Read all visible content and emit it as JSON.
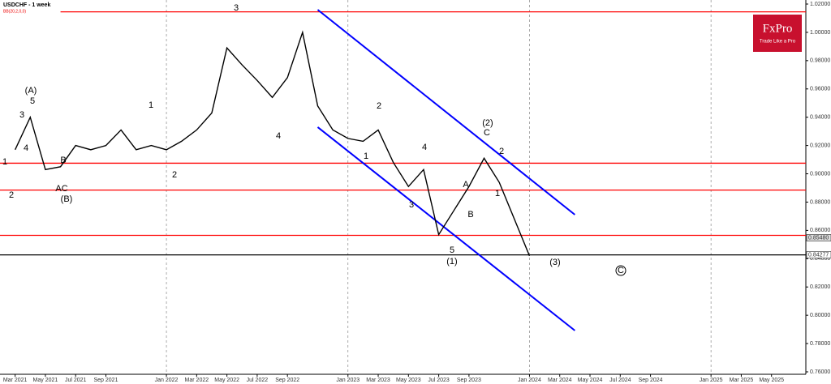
{
  "chart_data": {
    "type": "line",
    "title": "USDCHF - 1 week",
    "subtitle": "BB(20,2,0,0)",
    "logo": {
      "name": "FxPro",
      "tagline": "Trade Like a Pro"
    },
    "x": [
      "2021-03",
      "2021-04",
      "2021-05",
      "2021-06",
      "2021-07",
      "2021-08",
      "2021-09",
      "2021-10",
      "2021-11",
      "2021-12",
      "2022-01",
      "2022-02",
      "2022-03",
      "2022-04",
      "2022-05",
      "2022-06",
      "2022-07",
      "2022-08",
      "2022-09",
      "2022-10",
      "2022-11",
      "2022-12",
      "2023-01",
      "2023-02",
      "2023-03",
      "2023-04",
      "2023-05",
      "2023-06",
      "2023-07",
      "2023-08",
      "2023-09",
      "2023-10",
      "2023-11",
      "2023-12",
      "2024-01"
    ],
    "series": [
      {
        "name": "USDCHF",
        "color": "#000000",
        "values": [
          0.917,
          0.94,
          0.903,
          0.905,
          0.92,
          0.917,
          0.92,
          0.931,
          0.917,
          0.92,
          0.917,
          0.923,
          0.931,
          0.943,
          0.989,
          0.977,
          0.966,
          0.954,
          0.968,
          1.0,
          0.948,
          0.931,
          0.925,
          0.923,
          0.931,
          0.908,
          0.891,
          0.903,
          0.857,
          0.874,
          0.891,
          0.911,
          0.894,
          0.868,
          0.842
        ]
      }
    ],
    "xlim": [
      "2021-02",
      "2025-07"
    ],
    "xticks": [
      {
        "value": "2021-03",
        "label": "Mar 2021"
      },
      {
        "value": "2021-05",
        "label": "May 2021"
      },
      {
        "value": "2021-07",
        "label": "Jul 2021"
      },
      {
        "value": "2021-09",
        "label": "Sep 2021"
      },
      {
        "value": "2022-01",
        "label": "Jan 2022"
      },
      {
        "value": "2022-03",
        "label": "Mar 2022"
      },
      {
        "value": "2022-05",
        "label": "May 2022"
      },
      {
        "value": "2022-07",
        "label": "Jul 2022"
      },
      {
        "value": "2022-09",
        "label": "Sep 2022"
      },
      {
        "value": "2023-01",
        "label": "Jan 2023"
      },
      {
        "value": "2023-03",
        "label": "Mar 2023"
      },
      {
        "value": "2023-05",
        "label": "May 2023"
      },
      {
        "value": "2023-07",
        "label": "Jul 2023"
      },
      {
        "value": "2023-09",
        "label": "Sep 2023"
      },
      {
        "value": "2024-01",
        "label": "Jan 2024"
      },
      {
        "value": "2024-03",
        "label": "Mar 2024"
      },
      {
        "value": "2024-05",
        "label": "May 2024"
      },
      {
        "value": "2024-07",
        "label": "Jul 2024"
      },
      {
        "value": "2024-09",
        "label": "Sep 2024"
      },
      {
        "value": "2025-01",
        "label": "Jan 2025"
      },
      {
        "value": "2025-03",
        "label": "Mar 2025"
      },
      {
        "value": "2025-05",
        "label": "May 2025"
      }
    ],
    "ylim": [
      0.76,
      1.02
    ],
    "yticks": [
      {
        "value": 1.02,
        "label": "1.02000"
      },
      {
        "value": 1.0,
        "label": "1.00000"
      },
      {
        "value": 0.98,
        "label": "0.98000"
      },
      {
        "value": 0.96,
        "label": "0.96000"
      },
      {
        "value": 0.94,
        "label": "0.94000"
      },
      {
        "value": 0.92,
        "label": "0.92000"
      },
      {
        "value": 0.9,
        "label": "0.90000"
      },
      {
        "value": 0.88,
        "label": "0.88000"
      },
      {
        "value": 0.86,
        "label": "0.86000"
      },
      {
        "value": 0.84,
        "label": "0.84000"
      },
      {
        "value": 0.82,
        "label": "0.82000"
      },
      {
        "value": 0.8,
        "label": "0.80000"
      },
      {
        "value": 0.78,
        "label": "0.78000"
      },
      {
        "value": 0.76,
        "label": "0.76000"
      }
    ],
    "hlines": [
      {
        "value": 1.0145,
        "color": "#ff0000",
        "start": "2021-06"
      },
      {
        "value": 0.9075,
        "color": "#ff0000"
      },
      {
        "value": 0.8885,
        "color": "#ff0000"
      },
      {
        "value": 0.8565,
        "color": "#ff0000"
      },
      {
        "value": 0.8427,
        "color": "#000000"
      }
    ],
    "trendlines": [
      {
        "color": "#0000ff",
        "x": [
          "2022-11",
          "2024-04"
        ],
        "y": [
          1.016,
          0.8711
        ]
      },
      {
        "color": "#0000ff",
        "x": [
          "2022-11",
          "2024-04"
        ],
        "y": [
          0.933,
          0.7892
        ]
      }
    ],
    "price_labels": [
      {
        "value": 0.8548,
        "label": "0.85480"
      },
      {
        "value": 0.84277,
        "label": "0.84277"
      }
    ],
    "annotations": [
      "3",
      "(A)",
      "5",
      "3",
      "4",
      "B",
      "AC",
      "(B)",
      "1",
      "2",
      "1",
      "2",
      "4",
      "3",
      "4",
      "2",
      "1",
      "5",
      "(1)",
      "(2)",
      "C",
      "2",
      "1",
      "A",
      "B",
      "(3)",
      "C"
    ]
  }
}
